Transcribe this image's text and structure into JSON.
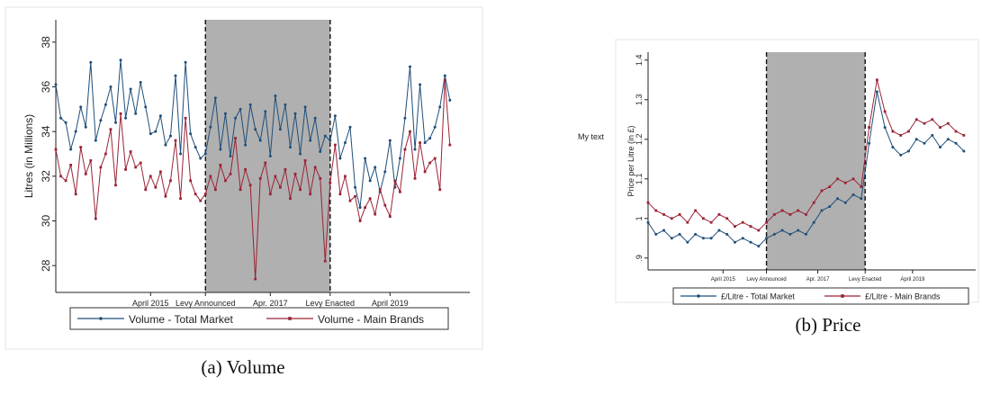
{
  "chart_data": [
    {
      "type": "line",
      "caption": "(a) Volume",
      "ylabel": "Litres (in Millions)",
      "ylim": [
        26.8,
        39
      ],
      "yticks": [
        28,
        30,
        32,
        34,
        36,
        38
      ],
      "x_range": [
        "2013-09",
        "2020-08"
      ],
      "xtick_labels": [
        "April 2015",
        "Levy Announced",
        "Apr. 2017",
        "Levy Enacted",
        "April 2019"
      ],
      "xtick_dates": [
        "2015-04",
        "2016-03",
        "2017-04",
        "2018-04",
        "2019-04"
      ],
      "shaded_period": [
        "2016-03",
        "2018-04"
      ],
      "grid": false,
      "legend_position": "bottom",
      "series": [
        {
          "name": "Volume - Total Market",
          "color": "#1f4e79",
          "marker": "circle",
          "x": [
            "2013-09",
            "2013-10",
            "2013-11",
            "2013-12",
            "2014-01",
            "2014-02",
            "2014-03",
            "2014-04",
            "2014-05",
            "2014-06",
            "2014-07",
            "2014-08",
            "2014-09",
            "2014-10",
            "2014-11",
            "2014-12",
            "2015-01",
            "2015-02",
            "2015-03",
            "2015-04",
            "2015-05",
            "2015-06",
            "2015-07",
            "2015-08",
            "2015-09",
            "2015-10",
            "2015-11",
            "2015-12",
            "2016-01",
            "2016-02",
            "2016-03",
            "2016-04",
            "2016-05",
            "2016-06",
            "2016-07",
            "2016-08",
            "2016-09",
            "2016-10",
            "2016-11",
            "2016-12",
            "2017-01",
            "2017-02",
            "2017-03",
            "2017-04",
            "2017-05",
            "2017-06",
            "2017-07",
            "2017-08",
            "2017-09",
            "2017-10",
            "2017-11",
            "2017-12",
            "2018-01",
            "2018-02",
            "2018-03",
            "2018-04",
            "2018-05",
            "2018-06",
            "2018-07",
            "2018-08",
            "2018-09",
            "2018-10",
            "2018-11",
            "2018-12",
            "2019-01",
            "2019-02",
            "2019-03",
            "2019-04",
            "2019-05",
            "2019-06",
            "2019-07",
            "2019-08",
            "2019-09",
            "2019-10",
            "2019-11",
            "2019-12",
            "2020-01",
            "2020-02",
            "2020-03",
            "2020-04"
          ],
          "values": [
            36.1,
            34.6,
            34.4,
            33.2,
            34.0,
            35.1,
            34.2,
            37.1,
            33.6,
            34.5,
            35.2,
            36.0,
            34.4,
            37.2,
            34.6,
            35.9,
            34.8,
            36.2,
            35.1,
            33.9,
            34.0,
            34.7,
            33.4,
            33.8,
            36.5,
            33.0,
            37.1,
            33.9,
            33.3,
            32.8,
            33.0,
            34.2,
            35.5,
            33.2,
            34.8,
            32.9,
            34.6,
            35.0,
            33.4,
            35.2,
            34.1,
            33.6,
            34.9,
            32.9,
            35.6,
            34.1,
            35.2,
            33.3,
            34.8,
            33.0,
            35.1,
            33.6,
            34.6,
            33.1,
            33.8,
            33.6,
            34.7,
            32.8,
            33.5,
            34.2,
            31.5,
            30.6,
            32.8,
            31.8,
            32.4,
            31.3,
            32.2,
            33.6,
            31.5,
            32.8,
            34.6,
            36.9,
            33.2,
            36.1,
            33.5,
            33.7,
            34.2,
            35.1,
            36.5,
            35.4
          ]
        },
        {
          "name": "Volume - Main Brands",
          "color": "#9b2335",
          "marker": "square",
          "x": [
            "2013-09",
            "2013-10",
            "2013-11",
            "2013-12",
            "2014-01",
            "2014-02",
            "2014-03",
            "2014-04",
            "2014-05",
            "2014-06",
            "2014-07",
            "2014-08",
            "2014-09",
            "2014-10",
            "2014-11",
            "2014-12",
            "2015-01",
            "2015-02",
            "2015-03",
            "2015-04",
            "2015-05",
            "2015-06",
            "2015-07",
            "2015-08",
            "2015-09",
            "2015-10",
            "2015-11",
            "2015-12",
            "2016-01",
            "2016-02",
            "2016-03",
            "2016-04",
            "2016-05",
            "2016-06",
            "2016-07",
            "2016-08",
            "2016-09",
            "2016-10",
            "2016-11",
            "2016-12",
            "2017-01",
            "2017-02",
            "2017-03",
            "2017-04",
            "2017-05",
            "2017-06",
            "2017-07",
            "2017-08",
            "2017-09",
            "2017-10",
            "2017-11",
            "2017-12",
            "2018-01",
            "2018-02",
            "2018-03",
            "2018-04",
            "2018-05",
            "2018-06",
            "2018-07",
            "2018-08",
            "2018-09",
            "2018-10",
            "2018-11",
            "2018-12",
            "2019-01",
            "2019-02",
            "2019-03",
            "2019-04",
            "2019-05",
            "2019-06",
            "2019-07",
            "2019-08",
            "2019-09",
            "2019-10",
            "2019-11",
            "2019-12",
            "2020-01",
            "2020-02",
            "2020-03",
            "2020-04"
          ],
          "values": [
            33.2,
            32.0,
            31.8,
            32.5,
            31.2,
            33.3,
            32.1,
            32.7,
            30.1,
            32.4,
            33.0,
            34.1,
            31.6,
            34.8,
            32.3,
            33.1,
            32.4,
            32.6,
            31.4,
            32.0,
            31.5,
            32.2,
            31.1,
            31.8,
            33.6,
            31.0,
            34.6,
            31.8,
            31.2,
            30.9,
            31.2,
            32.0,
            31.4,
            32.5,
            31.8,
            32.1,
            33.7,
            31.4,
            32.3,
            31.6,
            27.4,
            31.9,
            32.6,
            31.2,
            32.0,
            31.5,
            32.3,
            31.0,
            32.1,
            31.4,
            32.7,
            31.2,
            32.4,
            31.9,
            28.2,
            31.7,
            33.4,
            31.2,
            32.0,
            30.9,
            31.1,
            30.0,
            30.6,
            31.0,
            30.3,
            31.4,
            30.7,
            30.2,
            31.8,
            31.3,
            33.2,
            34.0,
            31.9,
            33.5,
            32.2,
            32.6,
            32.8,
            31.4,
            36.3,
            33.4
          ]
        }
      ]
    },
    {
      "type": "line",
      "caption": "(b) Price",
      "side_note": "My text",
      "ylabel": "Price per Litre (in £)",
      "ylim": [
        0.87,
        1.42
      ],
      "yticks": [
        0.9,
        1.0,
        1.1,
        1.2,
        1.3,
        1.4
      ],
      "ytick_labels": [
        ".9",
        "1",
        "1.1",
        "1.2",
        "1.3",
        "1.4"
      ],
      "x_range": [
        "2013-09",
        "2020-08"
      ],
      "xtick_labels": [
        "April 2015",
        "Levy Announced",
        "Apr. 2017",
        "Levy Enacted",
        "April 2019"
      ],
      "xtick_dates": [
        "2015-04",
        "2016-03",
        "2017-04",
        "2018-04",
        "2019-04"
      ],
      "shaded_period": [
        "2016-03",
        "2018-04"
      ],
      "grid": false,
      "legend_position": "bottom",
      "series": [
        {
          "name": "£/Litre - Total Market",
          "color": "#1f4e79",
          "marker": "circle",
          "x": [
            "2013-09",
            "2013-11",
            "2014-01",
            "2014-03",
            "2014-05",
            "2014-07",
            "2014-09",
            "2014-11",
            "2015-01",
            "2015-03",
            "2015-05",
            "2015-07",
            "2015-09",
            "2015-11",
            "2016-01",
            "2016-03",
            "2016-05",
            "2016-07",
            "2016-09",
            "2016-11",
            "2017-01",
            "2017-03",
            "2017-05",
            "2017-07",
            "2017-09",
            "2017-11",
            "2018-01",
            "2018-03",
            "2018-05",
            "2018-07",
            "2018-09",
            "2018-11",
            "2019-01",
            "2019-03",
            "2019-05",
            "2019-07",
            "2019-09",
            "2019-11",
            "2020-01",
            "2020-03",
            "2020-05"
          ],
          "values": [
            0.99,
            0.96,
            0.97,
            0.95,
            0.96,
            0.94,
            0.96,
            0.95,
            0.95,
            0.97,
            0.96,
            0.94,
            0.95,
            0.94,
            0.93,
            0.95,
            0.96,
            0.97,
            0.96,
            0.97,
            0.96,
            0.99,
            1.02,
            1.03,
            1.05,
            1.04,
            1.06,
            1.05,
            1.19,
            1.32,
            1.23,
            1.18,
            1.16,
            1.17,
            1.2,
            1.19,
            1.21,
            1.18,
            1.2,
            1.19,
            1.17
          ]
        },
        {
          "name": "£/Litre - Main Brands",
          "color": "#9b2335",
          "marker": "square",
          "x": [
            "2013-09",
            "2013-11",
            "2014-01",
            "2014-03",
            "2014-05",
            "2014-07",
            "2014-09",
            "2014-11",
            "2015-01",
            "2015-03",
            "2015-05",
            "2015-07",
            "2015-09",
            "2015-11",
            "2016-01",
            "2016-03",
            "2016-05",
            "2016-07",
            "2016-09",
            "2016-11",
            "2017-01",
            "2017-03",
            "2017-05",
            "2017-07",
            "2017-09",
            "2017-11",
            "2018-01",
            "2018-03",
            "2018-05",
            "2018-07",
            "2018-09",
            "2018-11",
            "2019-01",
            "2019-03",
            "2019-05",
            "2019-07",
            "2019-09",
            "2019-11",
            "2020-01",
            "2020-03",
            "2020-05"
          ],
          "values": [
            1.04,
            1.02,
            1.01,
            1.0,
            1.01,
            0.99,
            1.02,
            1.0,
            0.99,
            1.01,
            1.0,
            0.98,
            0.99,
            0.98,
            0.97,
            0.99,
            1.01,
            1.02,
            1.01,
            1.02,
            1.01,
            1.04,
            1.07,
            1.08,
            1.1,
            1.09,
            1.1,
            1.08,
            1.23,
            1.35,
            1.27,
            1.22,
            1.21,
            1.22,
            1.25,
            1.24,
            1.25,
            1.23,
            1.24,
            1.22,
            1.21
          ]
        }
      ]
    }
  ]
}
